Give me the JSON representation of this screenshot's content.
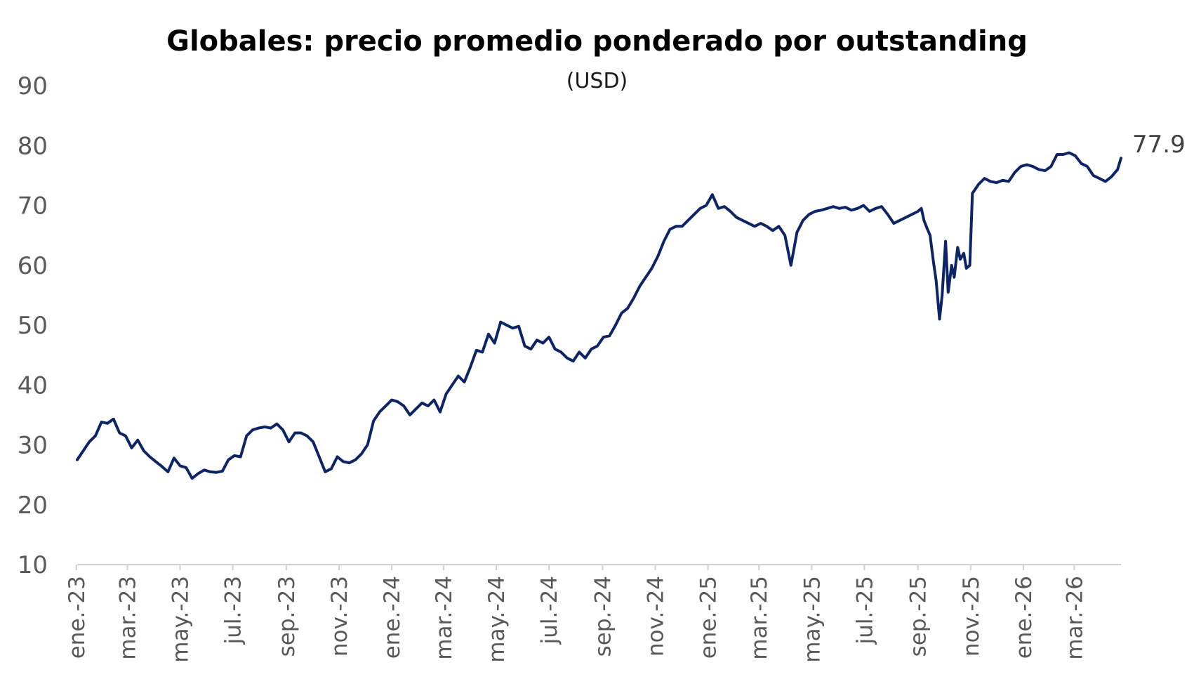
{
  "chart_data": {
    "type": "line",
    "title": "Globales: precio promedio ponderado por outstanding",
    "subtitle": "(USD)",
    "xlabel": "",
    "ylabel": "",
    "ylim": [
      10,
      90
    ],
    "yticks": [
      10,
      20,
      30,
      40,
      50,
      60,
      70,
      80,
      90
    ],
    "grid": false,
    "legend": "none",
    "x_tick_labels": [
      "ene.-23",
      "mar.-23",
      "may.-23",
      "jul.-23",
      "sep.-23",
      "nov.-23",
      "ene.-24",
      "mar.-24",
      "may.-24",
      "jul.-24",
      "sep.-24",
      "nov.-24",
      "ene.-25",
      "mar.-25",
      "may.-25",
      "jul.-25",
      "sep.-25",
      "nov.-25",
      "ene.-26",
      "mar.-26"
    ],
    "end_label": "77.9",
    "line_color": "#0d2566",
    "series": [
      {
        "x": [
          "2023-01-02",
          "2023-01-09",
          "2023-01-16",
          "2023-01-23",
          "2023-01-30",
          "2023-02-06",
          "2023-02-13",
          "2023-02-20",
          "2023-02-27",
          "2023-03-06",
          "2023-03-13",
          "2023-03-20",
          "2023-03-27",
          "2023-04-03",
          "2023-04-10",
          "2023-04-17",
          "2023-04-24",
          "2023-05-01",
          "2023-05-08",
          "2023-05-15",
          "2023-05-22",
          "2023-05-29",
          "2023-06-05",
          "2023-06-12",
          "2023-06-19",
          "2023-06-26",
          "2023-07-03",
          "2023-07-10",
          "2023-07-17",
          "2023-07-24",
          "2023-07-31",
          "2023-08-07",
          "2023-08-14",
          "2023-08-21",
          "2023-08-28",
          "2023-09-04",
          "2023-09-11",
          "2023-09-18",
          "2023-09-25",
          "2023-10-02",
          "2023-10-09",
          "2023-10-16",
          "2023-10-23",
          "2023-10-30",
          "2023-11-06",
          "2023-11-13",
          "2023-11-20",
          "2023-11-27",
          "2023-12-04",
          "2023-12-11",
          "2023-12-18",
          "2023-12-25",
          "2024-01-01",
          "2024-01-08",
          "2024-01-15",
          "2024-01-22",
          "2024-01-29",
          "2024-02-05",
          "2024-02-12",
          "2024-02-19",
          "2024-02-26",
          "2024-03-04",
          "2024-03-11",
          "2024-03-18",
          "2024-03-25",
          "2024-04-01",
          "2024-04-08",
          "2024-04-15",
          "2024-04-22",
          "2024-04-29",
          "2024-05-06",
          "2024-05-13",
          "2024-05-20",
          "2024-05-27",
          "2024-06-03",
          "2024-06-10",
          "2024-06-17",
          "2024-06-24",
          "2024-07-01",
          "2024-07-08",
          "2024-07-15",
          "2024-07-22",
          "2024-07-29",
          "2024-08-05",
          "2024-08-12",
          "2024-08-19",
          "2024-08-26",
          "2024-09-02",
          "2024-09-09",
          "2024-09-16",
          "2024-09-23",
          "2024-09-30",
          "2024-10-07",
          "2024-10-14",
          "2024-10-21",
          "2024-10-28",
          "2024-11-04",
          "2024-11-11",
          "2024-11-18",
          "2024-11-25",
          "2024-12-02",
          "2024-12-09",
          "2024-12-16",
          "2024-12-23",
          "2024-12-30",
          "2025-01-06",
          "2025-01-13",
          "2025-01-20",
          "2025-01-27",
          "2025-02-03",
          "2025-02-10",
          "2025-02-17",
          "2025-02-24",
          "2025-03-03",
          "2025-03-10",
          "2025-03-17",
          "2025-03-24",
          "2025-03-31",
          "2025-04-07",
          "2025-04-14",
          "2025-04-21",
          "2025-04-28",
          "2025-05-05",
          "2025-05-12",
          "2025-05-19",
          "2025-05-26",
          "2025-06-02",
          "2025-06-09",
          "2025-06-16",
          "2025-06-23",
          "2025-06-30",
          "2025-07-07",
          "2025-07-14",
          "2025-07-21",
          "2025-07-28",
          "2025-08-04",
          "2025-08-11",
          "2025-08-18",
          "2025-08-25",
          "2025-09-01",
          "2025-09-05",
          "2025-09-08",
          "2025-09-12",
          "2025-09-15",
          "2025-09-19",
          "2025-09-22",
          "2025-09-26",
          "2025-09-29",
          "2025-10-03",
          "2025-10-06",
          "2025-10-10",
          "2025-10-13",
          "2025-10-17",
          "2025-10-20",
          "2025-10-24",
          "2025-10-27",
          "2025-10-31",
          "2025-11-03",
          "2025-11-10",
          "2025-11-17",
          "2025-11-24",
          "2025-12-01",
          "2025-12-08",
          "2025-12-15",
          "2025-12-22",
          "2025-12-29",
          "2026-01-05",
          "2026-01-12",
          "2026-01-19",
          "2026-01-26",
          "2026-02-02",
          "2026-02-09",
          "2026-02-16",
          "2026-02-23",
          "2026-03-02",
          "2026-03-09",
          "2026-03-16",
          "2026-03-23",
          "2026-03-30",
          "2026-04-06",
          "2026-04-13",
          "2026-04-20",
          "2026-04-24"
        ],
        "values": [
          27.5,
          29.0,
          30.5,
          31.5,
          33.8,
          33.6,
          34.3,
          32.0,
          31.5,
          29.5,
          30.8,
          29.0,
          28.0,
          27.2,
          26.4,
          25.5,
          27.8,
          26.5,
          26.2,
          24.4,
          25.2,
          25.8,
          25.5,
          25.4,
          25.6,
          27.5,
          28.2,
          28.0,
          31.5,
          32.5,
          32.8,
          33.0,
          32.8,
          33.5,
          32.5,
          30.5,
          32.0,
          32.0,
          31.5,
          30.5,
          28.0,
          25.5,
          26.0,
          28.0,
          27.2,
          27.0,
          27.5,
          28.5,
          30.0,
          34.0,
          35.5,
          36.5,
          37.5,
          37.2,
          36.5,
          35.0,
          36.0,
          37.0,
          36.5,
          37.5,
          35.5,
          38.5,
          40.0,
          41.5,
          40.5,
          43.0,
          45.8,
          45.5,
          48.5,
          47.0,
          50.5,
          50.0,
          49.5,
          49.8,
          46.5,
          46.0,
          47.5,
          47.0,
          48.0,
          46.0,
          45.5,
          44.5,
          44.0,
          45.5,
          44.5,
          46.0,
          46.5,
          48.0,
          48.2,
          50.0,
          52.0,
          52.8,
          54.5,
          56.5,
          58.0,
          59.5,
          61.5,
          64.0,
          66.0,
          66.5,
          66.5,
          67.5,
          68.5,
          69.5,
          70.0,
          71.8,
          69.5,
          69.8,
          69.0,
          68.0,
          67.5,
          67.0,
          66.5,
          67.0,
          66.5,
          65.8,
          66.5,
          65.0,
          60.0,
          65.5,
          67.5,
          68.5,
          69.0,
          69.2,
          69.5,
          69.8,
          69.5,
          69.7,
          69.2,
          69.5,
          70.0,
          69.0,
          69.5,
          69.8,
          68.5,
          67.0,
          67.5,
          68.0,
          68.5,
          69.0,
          69.5,
          67.5,
          66.0,
          65.0,
          60.5,
          57.5,
          51.0,
          55.0,
          64.0,
          55.5,
          60.0,
          58.0,
          63.0,
          61.0,
          62.0,
          59.5,
          60.0,
          72.0,
          73.5,
          74.5,
          74.0,
          73.8,
          74.2,
          74.0,
          75.5,
          76.5,
          76.8,
          76.5,
          76.0,
          75.8,
          76.5,
          78.5,
          78.5,
          78.8,
          78.3,
          77.0,
          76.5,
          75.0,
          74.5,
          74.0,
          74.8,
          76.0,
          77.9
        ]
      }
    ]
  }
}
